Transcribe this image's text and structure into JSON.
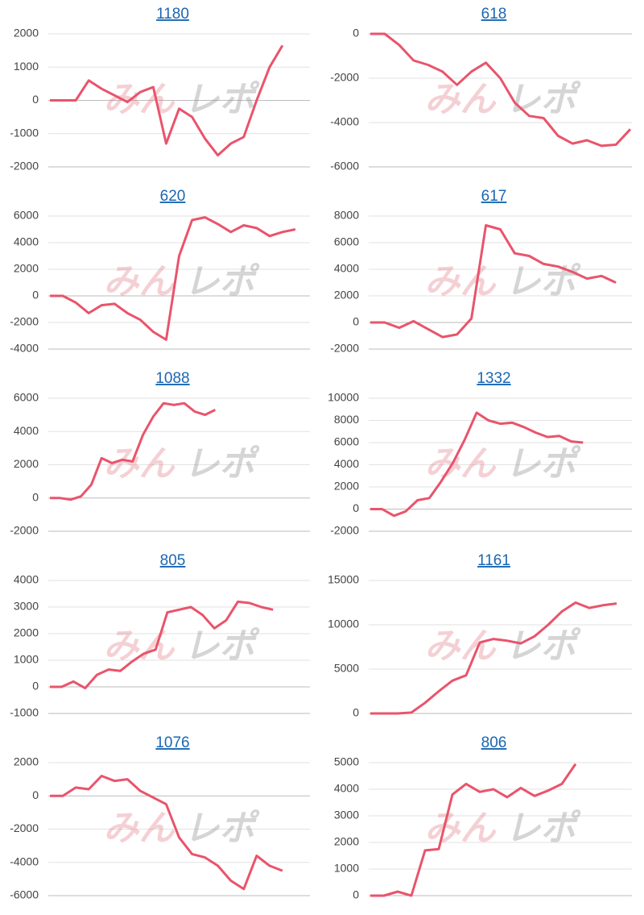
{
  "watermark": {
    "left": "みん",
    "right": "レポ"
  },
  "chart_data": [
    {
      "type": "line",
      "title": "1180",
      "color": "#e9546b",
      "grid": true,
      "ylim": [
        -2000,
        2000
      ],
      "yticks": [
        -2000,
        -1000,
        0,
        1000,
        2000
      ],
      "values": [
        0,
        0,
        0,
        600,
        350,
        150,
        -50,
        250,
        400,
        -1300,
        -250,
        -500,
        -1150,
        -1650,
        -1300,
        -1100,
        0,
        1000,
        1650,
        null,
        null
      ]
    },
    {
      "type": "line",
      "title": "618",
      "color": "#e9546b",
      "grid": true,
      "ylim": [
        -6000,
        0
      ],
      "yticks": [
        -6000,
        -4000,
        -2000,
        0
      ],
      "values": [
        0,
        0,
        -500,
        -1200,
        -1400,
        -1700,
        -2300,
        -1700,
        -1300,
        -2000,
        -3100,
        -3700,
        -3800,
        -4600,
        -4950,
        -4800,
        -5050,
        -5000,
        -4300
      ]
    },
    {
      "type": "line",
      "title": "620",
      "color": "#e9546b",
      "grid": true,
      "ylim": [
        -4000,
        6000
      ],
      "yticks": [
        -4000,
        -2000,
        0,
        2000,
        4000,
        6000
      ],
      "values": [
        0,
        0,
        -500,
        -1300,
        -700,
        -600,
        -1300,
        -1800,
        -2700,
        -3300,
        3000,
        5700,
        5900,
        5400,
        4800,
        5300,
        5100,
        4500,
        4800,
        5000,
        null
      ]
    },
    {
      "type": "line",
      "title": "617",
      "color": "#e9546b",
      "grid": true,
      "ylim": [
        -2000,
        8000
      ],
      "yticks": [
        -2000,
        0,
        2000,
        4000,
        6000,
        8000
      ],
      "values": [
        0,
        0,
        -400,
        100,
        -500,
        -1100,
        -900,
        300,
        7300,
        7000,
        5200,
        5000,
        4400,
        4200,
        3800,
        3300,
        3500,
        3000,
        null
      ]
    },
    {
      "type": "line",
      "title": "1088",
      "color": "#e9546b",
      "grid": true,
      "ylim": [
        -2000,
        6000
      ],
      "yticks": [
        -2000,
        0,
        2000,
        4000,
        6000
      ],
      "values": [
        0,
        0,
        -100,
        100,
        800,
        2400,
        2100,
        2300,
        2200,
        3800,
        4900,
        5700,
        5600,
        5700,
        5200,
        5000,
        5300,
        null,
        null,
        null,
        null,
        null,
        null,
        null,
        null,
        null
      ]
    },
    {
      "type": "line",
      "title": "1332",
      "color": "#e9546b",
      "grid": true,
      "ylim": [
        -2000,
        10000
      ],
      "yticks": [
        -2000,
        0,
        2000,
        4000,
        6000,
        8000,
        10000
      ],
      "values": [
        0,
        0,
        -600,
        -200,
        800,
        1000,
        2500,
        4200,
        6300,
        8700,
        8000,
        7700,
        7800,
        7400,
        6900,
        6500,
        6600,
        6100,
        6000,
        null,
        null,
        null,
        null
      ]
    },
    {
      "type": "line",
      "title": "805",
      "color": "#e9546b",
      "grid": true,
      "ylim": [
        -1000,
        4000
      ],
      "yticks": [
        -1000,
        0,
        1000,
        2000,
        3000,
        4000
      ],
      "values": [
        0,
        0,
        200,
        -50,
        450,
        650,
        600,
        950,
        1250,
        1400,
        2800,
        2900,
        3000,
        2700,
        2200,
        2500,
        3200,
        3150,
        3000,
        2900,
        null,
        null,
        null
      ]
    },
    {
      "type": "line",
      "title": "1161",
      "color": "#e9546b",
      "grid": true,
      "ylim": [
        0,
        15000
      ],
      "yticks": [
        0,
        5000,
        10000,
        15000
      ],
      "values": [
        0,
        0,
        0,
        100,
        1200,
        2500,
        3700,
        4300,
        8000,
        8400,
        8200,
        7900,
        8700,
        10000,
        11500,
        12500,
        11900,
        12200,
        12400,
        null
      ]
    },
    {
      "type": "line",
      "title": "1076",
      "color": "#e9546b",
      "grid": true,
      "ylim": [
        -6000,
        2000
      ],
      "yticks": [
        -6000,
        -4000,
        -2000,
        0,
        2000
      ],
      "values": [
        0,
        0,
        500,
        400,
        1200,
        900,
        1000,
        300,
        -100,
        -500,
        -2500,
        -3500,
        -3700,
        -4200,
        -5100,
        -5600,
        -3600,
        -4200,
        -4500,
        null,
        null
      ]
    },
    {
      "type": "line",
      "title": "806",
      "color": "#e9546b",
      "grid": true,
      "ylim": [
        0,
        5000
      ],
      "yticks": [
        0,
        1000,
        2000,
        3000,
        4000,
        5000
      ],
      "values": [
        0,
        0,
        150,
        0,
        1700,
        1750,
        3800,
        4200,
        3900,
        4000,
        3700,
        4050,
        3750,
        3950,
        4200,
        4950,
        null,
        null,
        null,
        null
      ]
    }
  ]
}
